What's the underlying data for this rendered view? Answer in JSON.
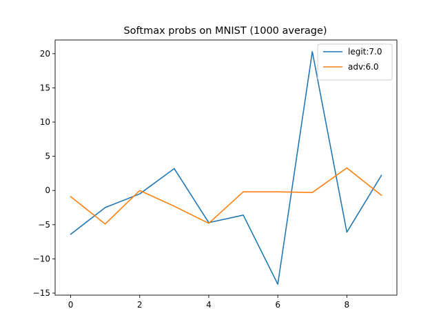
{
  "chart_data": {
    "type": "line",
    "title": "Softmax probs on MNIST (1000 average)",
    "xlabel": "",
    "ylabel": "",
    "x": [
      0,
      1,
      2,
      3,
      4,
      5,
      6,
      7,
      8,
      9
    ],
    "xlim": [
      -0.45,
      9.45
    ],
    "ylim": [
      -15.3,
      22.0
    ],
    "xticks": [
      0,
      2,
      4,
      6,
      8
    ],
    "yticks": [
      -15,
      -10,
      -5,
      0,
      5,
      10,
      15,
      20
    ],
    "grid": false,
    "legend_position": "top-right",
    "series": [
      {
        "name": "legit:7.0",
        "color": "#1f77b4",
        "values": [
          -6.4,
          -2.5,
          -0.5,
          3.2,
          -4.7,
          -3.6,
          -13.7,
          20.3,
          -6.1,
          2.2
        ]
      },
      {
        "name": "adv:6.0",
        "color": "#ff7f0e",
        "values": [
          -0.9,
          -4.9,
          0.0,
          -2.3,
          -4.8,
          -0.2,
          -0.2,
          -0.3,
          3.3,
          -0.7
        ]
      }
    ]
  }
}
